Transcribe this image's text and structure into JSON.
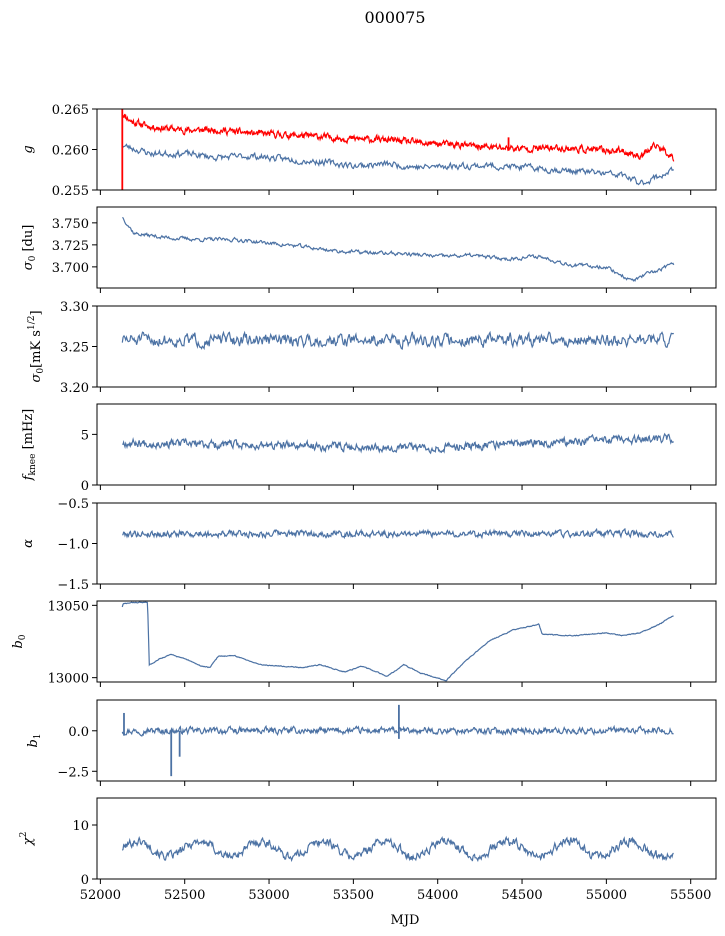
{
  "title": "000075",
  "xlabel": "MJD",
  "colors": {
    "series": "#4c72a4",
    "highlight": "#ff0000",
    "axis": "#000000"
  },
  "chart_data": [
    {
      "type": "line",
      "id": "g",
      "ylabel": "g",
      "ylabel_sub": "",
      "xlim": [
        51980,
        55650
      ],
      "ylim": [
        0.255,
        0.265
      ],
      "yticks": [
        0.255,
        0.26,
        0.265
      ],
      "ytick_labels": [
        "0.255",
        "0.260",
        "0.265"
      ],
      "series": [
        {
          "color": "#ff0000",
          "noise": 0.00045,
          "seed": 11,
          "step": 3,
          "x": [
            52130,
            52180,
            52300,
            52500,
            52700,
            52900,
            53100,
            53300,
            53500,
            53700,
            53900,
            54100,
            54300,
            54500,
            54700,
            54900,
            55100,
            55200,
            55300,
            55400
          ],
          "y": [
            0.2645,
            0.2635,
            0.2628,
            0.2624,
            0.2624,
            0.262,
            0.2618,
            0.2616,
            0.2613,
            0.2612,
            0.2608,
            0.2606,
            0.2603,
            0.2601,
            0.2602,
            0.26,
            0.2598,
            0.2592,
            0.2605,
            0.259
          ]
        },
        {
          "color": "#4c72a4",
          "noise": 0.00045,
          "seed": 23,
          "step": 5,
          "x": [
            52130,
            52300,
            52500,
            52700,
            52900,
            53100,
            53300,
            53500,
            53700,
            53900,
            54100,
            54300,
            54500,
            54700,
            54900,
            55100,
            55200,
            55300,
            55400
          ],
          "y": [
            0.2605,
            0.2595,
            0.2595,
            0.259,
            0.2592,
            0.2588,
            0.2585,
            0.258,
            0.2582,
            0.2578,
            0.258,
            0.258,
            0.2578,
            0.2575,
            0.2572,
            0.2568,
            0.2558,
            0.2566,
            0.2575
          ]
        }
      ],
      "markers": [
        {
          "x": 52130,
          "y0": 0.255,
          "y1": 0.265,
          "color": "#ff0000"
        },
        {
          "x": 54420,
          "y0": 0.26,
          "y1": 0.2615,
          "color": "#ff0000"
        }
      ]
    },
    {
      "type": "line",
      "id": "sigma0",
      "ylabel": "σ",
      "ylabel_sub": "0",
      "ylabel_tail": " [du]",
      "xlim": [
        51980,
        55650
      ],
      "ylim": [
        3.676,
        3.768
      ],
      "yticks": [
        3.7,
        3.725,
        3.75
      ],
      "ytick_labels": [
        "3.700",
        "3.725",
        "3.750"
      ],
      "series": [
        {
          "color": "#4c72a4",
          "noise": 0.0025,
          "seed": 37,
          "step": 5,
          "x": [
            52130,
            52200,
            52400,
            52600,
            52800,
            53000,
            53200,
            53400,
            53600,
            53800,
            54000,
            54200,
            54400,
            54600,
            54800,
            55000,
            55150,
            55250,
            55400
          ],
          "y": [
            3.757,
            3.738,
            3.733,
            3.731,
            3.731,
            3.727,
            3.723,
            3.718,
            3.716,
            3.715,
            3.712,
            3.713,
            3.709,
            3.712,
            3.702,
            3.7,
            3.684,
            3.692,
            3.703
          ]
        }
      ],
      "markers": []
    },
    {
      "type": "line",
      "id": "sigma0cal",
      "ylabel": "σ",
      "ylabel_sub": "0",
      "ylabel_tail": "[mK s",
      "ylabel_sup": "1/2",
      "ylabel_end": "]",
      "xlim": [
        51980,
        55650
      ],
      "ylim": [
        3.2,
        3.3
      ],
      "yticks": [
        3.2,
        3.25,
        3.3
      ],
      "ytick_labels": [
        "3.20",
        "3.25",
        "3.30"
      ],
      "series": [
        {
          "color": "#4c72a4",
          "noise": 0.009,
          "seed": 51,
          "step": 5,
          "x": [
            52130,
            55400
          ],
          "y": [
            3.258,
            3.258
          ]
        }
      ],
      "markers": []
    },
    {
      "type": "line",
      "id": "fknee",
      "ylabel": "f",
      "ylabel_sub": "knee",
      "ylabel_tail": " [mHz]",
      "xlim": [
        51980,
        55650
      ],
      "ylim": [
        0,
        8
      ],
      "yticks": [
        0,
        5
      ],
      "ytick_labels": [
        "0",
        "5"
      ],
      "series": [
        {
          "color": "#4c72a4",
          "noise": 0.45,
          "seed": 67,
          "step": 4,
          "x": [
            52130,
            53000,
            54000,
            54500,
            55000,
            55400
          ],
          "y": [
            4.2,
            3.9,
            3.7,
            4.1,
            4.4,
            4.5
          ]
        }
      ],
      "markers": []
    },
    {
      "type": "line",
      "id": "alpha",
      "ylabel": "α",
      "ylabel_sub": "",
      "xlim": [
        51980,
        55650
      ],
      "ylim": [
        -1.5,
        -0.5
      ],
      "yticks": [
        -1.5,
        -1.0,
        -0.5
      ],
      "ytick_labels": [
        "−1.5",
        "−1.0",
        "−0.5"
      ],
      "series": [
        {
          "color": "#4c72a4",
          "noise": 0.045,
          "seed": 79,
          "step": 4,
          "x": [
            52130,
            55400
          ],
          "y": [
            -0.88,
            -0.88
          ]
        }
      ],
      "markers": []
    },
    {
      "type": "line",
      "id": "b0",
      "ylabel": "b",
      "ylabel_sub": "0",
      "xlim": [
        51980,
        55650
      ],
      "ylim": [
        12997,
        13053
      ],
      "yticks": [
        13000,
        13050
      ],
      "ytick_labels": [
        "13000",
        "13050"
      ],
      "series": [
        {
          "color": "#4c72a4",
          "noise": 0.35,
          "seed": 83,
          "step": 4,
          "x": [
            52130,
            52135,
            52200,
            52280,
            52290,
            52350,
            52420,
            52500,
            52600,
            52650,
            52700,
            52800,
            52950,
            53200,
            53300,
            53450,
            53550,
            53700,
            53800,
            53900,
            54050,
            54150,
            54300,
            54450,
            54600,
            54620,
            54800,
            55000,
            55100,
            55200,
            55300,
            55400
          ],
          "y": [
            13049,
            13051,
            13052,
            13052,
            13009,
            13013,
            13016,
            13013,
            13008,
            13007,
            13015,
            13015,
            13009,
            13007,
            13009,
            13004,
            13008,
            13001,
            13009,
            13003,
            12998,
            13010,
            13025,
            13033,
            13037,
            13030,
            13029,
            13031,
            13029,
            13031,
            13036,
            13043
          ]
        }
      ],
      "markers": []
    },
    {
      "type": "line",
      "id": "b1",
      "ylabel": "b",
      "ylabel_sub": "1",
      "xlim": [
        51980,
        55650
      ],
      "ylim": [
        -3.1,
        1.9
      ],
      "yticks": [
        -2.5,
        0.0
      ],
      "ytick_labels": [
        "−2.5",
        "0.0"
      ],
      "series": [
        {
          "color": "#4c72a4",
          "noise": 0.22,
          "seed": 97,
          "step": 4,
          "x": [
            52130,
            55400
          ],
          "y": [
            0.0,
            0.0
          ]
        }
      ],
      "markers": [
        {
          "x": 52140,
          "y0": -0.3,
          "y1": 1.1,
          "color": "#4c72a4"
        },
        {
          "x": 52420,
          "y0": -2.8,
          "y1": 0.0,
          "color": "#4c72a4"
        },
        {
          "x": 52470,
          "y0": -1.6,
          "y1": 0.0,
          "color": "#4c72a4"
        },
        {
          "x": 53770,
          "y0": -0.5,
          "y1": 1.6,
          "color": "#4c72a4"
        }
      ]
    },
    {
      "type": "line",
      "id": "chi2",
      "ylabel": "χ",
      "ylabel_sup": "2",
      "xlim": [
        51980,
        55650
      ],
      "ylim": [
        0,
        15
      ],
      "yticks": [
        0,
        10
      ],
      "ytick_labels": [
        "0",
        "10"
      ],
      "xticks": [
        52000,
        52500,
        53000,
        53500,
        54000,
        54500,
        55000,
        55500
      ],
      "xtick_labels": [
        "52000",
        "52500",
        "53000",
        "53500",
        "54000",
        "54500",
        "55000",
        "55500"
      ],
      "series": [
        {
          "color": "#4c72a4",
          "noise": 0.9,
          "seed": 101,
          "step": 4,
          "wave": {
            "amp": 1.4,
            "period": 365
          },
          "x": [
            52130,
            55400
          ],
          "y": [
            5.6,
            5.6
          ]
        }
      ],
      "markers": []
    }
  ]
}
